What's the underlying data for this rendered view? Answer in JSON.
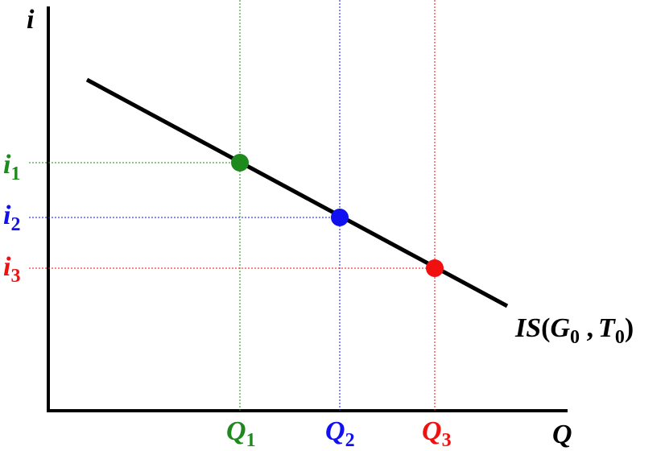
{
  "axes": {
    "y_label": "i",
    "x_label": "Q"
  },
  "curve": {
    "name": "IS",
    "open": "(",
    "g": "G",
    "g_sub": "0",
    "sep": " ,",
    "t": "T",
    "t_sub": "0",
    "close": ")",
    "color": "#000000"
  },
  "points": [
    {
      "q": "Q",
      "q_sub": "1",
      "i": "i",
      "i_sub": "1",
      "color": "#1e8a1e"
    },
    {
      "q": "Q",
      "q_sub": "2",
      "i": "i",
      "i_sub": "2",
      "color": "#1010f0"
    },
    {
      "q": "Q",
      "q_sub": "3",
      "i": "i",
      "i_sub": "3",
      "color": "#f01010"
    }
  ]
}
